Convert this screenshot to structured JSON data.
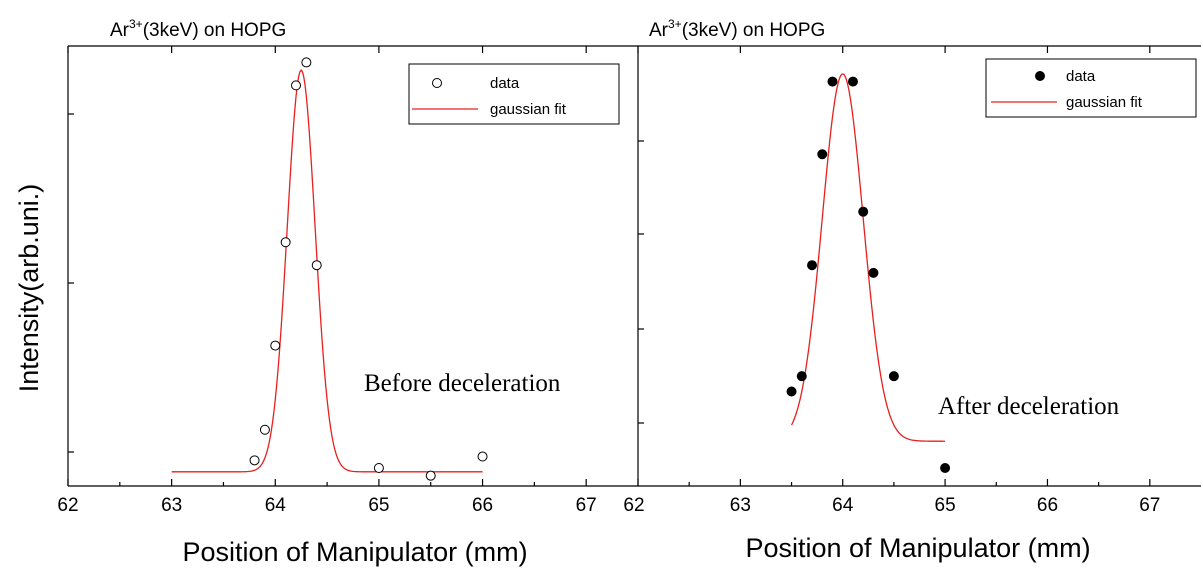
{
  "ylabel": "Intensity(arb.uni.)",
  "chart_data": [
    {
      "type": "scatter",
      "title_prefix": "Ar",
      "title_sup": "3+",
      "title_suffix": "(3keV) on HOPG",
      "xlabel": "Position of Manipulator (mm)",
      "xlim": [
        62,
        67.5
      ],
      "ylim": [
        0,
        1.15
      ],
      "xticks": [
        "62",
        "63",
        "64",
        "65",
        "66",
        "67"
      ],
      "annotation": "Before deceleration",
      "marker": "open-circle",
      "legend": {
        "position": "top-right",
        "data_label": "data",
        "fit_label": "gaussian fit"
      },
      "fit_color": "#e8201e",
      "series": [
        {
          "name": "data",
          "x": [
            63.8,
            63.9,
            64.0,
            64.1,
            64.2,
            64.3,
            64.4,
            65.0,
            65.5,
            66.0
          ],
          "y": [
            0.02,
            0.1,
            0.32,
            0.59,
            1.0,
            1.06,
            0.53,
            0.0,
            -0.02,
            0.03
          ]
        }
      ],
      "fit": {
        "type": "gaussian",
        "center": 64.25,
        "sigma": 0.135,
        "amplitude": 1.05,
        "baseline": -0.01,
        "x_range": [
          63.0,
          66.0
        ]
      }
    },
    {
      "type": "scatter",
      "title_prefix": "Ar",
      "title_sup": "3+",
      "title_suffix": "(3keV) on HOPG",
      "xlabel": "Position of Manipulator (mm)",
      "xlim": [
        62,
        67.5
      ],
      "ylim": [
        0,
        1.15
      ],
      "xticks": [
        "62",
        "63",
        "64",
        "65",
        "66",
        "67"
      ],
      "annotation": "After deceleration",
      "marker": "filled-circle",
      "legend": {
        "position": "top-right",
        "data_label": "data",
        "fit_label": "gaussian fit"
      },
      "fit_color": "#e8201e",
      "series": [
        {
          "name": "data",
          "x": [
            63.5,
            63.6,
            63.7,
            63.8,
            63.9,
            64.1,
            64.2,
            64.3,
            64.5,
            65.0
          ],
          "y": [
            0.2,
            0.24,
            0.53,
            0.82,
            1.01,
            1.01,
            0.67,
            0.51,
            0.24,
            0.0
          ]
        }
      ],
      "fit": {
        "type": "gaussian",
        "center": 64.0,
        "sigma": 0.2,
        "amplitude": 0.96,
        "baseline": 0.07,
        "x_range": [
          63.5,
          65.0
        ]
      }
    }
  ]
}
